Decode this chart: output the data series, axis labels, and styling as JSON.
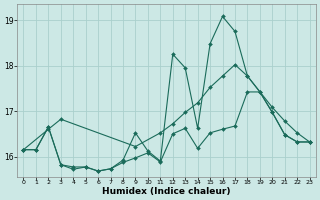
{
  "background_color": "#cce8e5",
  "grid_color": "#aad0cc",
  "line_color": "#1a6b5a",
  "xlabel": "Humidex (Indice chaleur)",
  "ylim": [
    15.55,
    19.35
  ],
  "xlim": [
    -0.5,
    23.5
  ],
  "yticks": [
    16,
    17,
    18,
    19
  ],
  "figsize": [
    3.2,
    2.0
  ],
  "dpi": 100,
  "series1_x": [
    0,
    1,
    2,
    3,
    4,
    5,
    6,
    7,
    8,
    9,
    10,
    11,
    12,
    13,
    14,
    15,
    16,
    17,
    18,
    19,
    20,
    21,
    22,
    23
  ],
  "series1_y": [
    16.15,
    16.15,
    16.65,
    15.82,
    15.72,
    15.77,
    15.68,
    15.73,
    15.87,
    15.97,
    16.08,
    15.88,
    16.5,
    16.62,
    16.18,
    16.52,
    16.6,
    16.67,
    17.42,
    17.42,
    16.97,
    16.48,
    16.32,
    16.32
  ],
  "series2_x": [
    0,
    1,
    2,
    3,
    4,
    5,
    6,
    7,
    8,
    9,
    10,
    11,
    12,
    13,
    14,
    15,
    16,
    17,
    18,
    19,
    20,
    21,
    22,
    23
  ],
  "series2_y": [
    16.15,
    16.15,
    16.65,
    15.82,
    15.77,
    15.77,
    15.68,
    15.73,
    15.92,
    16.52,
    16.12,
    15.9,
    18.25,
    17.95,
    16.62,
    18.48,
    19.08,
    18.75,
    17.77,
    17.42,
    16.97,
    16.48,
    16.32,
    16.32
  ],
  "series3_x": [
    0,
    2,
    3,
    9,
    11,
    12,
    13,
    14,
    15,
    16,
    17,
    18,
    20,
    21,
    22,
    23
  ],
  "series3_y": [
    16.15,
    16.6,
    16.82,
    16.22,
    16.52,
    16.72,
    16.97,
    17.18,
    17.52,
    17.77,
    18.02,
    17.77,
    17.08,
    16.78,
    16.52,
    16.32
  ]
}
